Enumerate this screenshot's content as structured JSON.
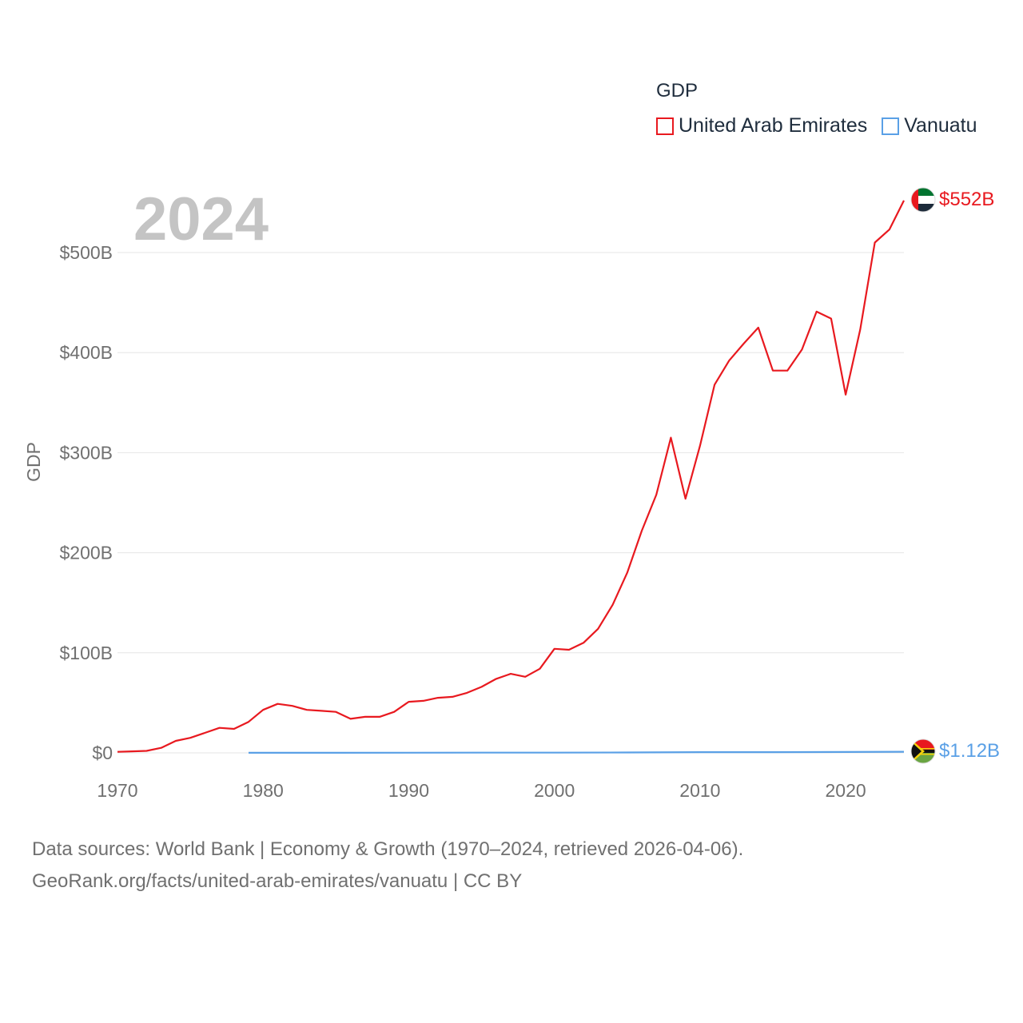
{
  "legend": {
    "title": "GDP",
    "items": [
      {
        "label": "United Arab Emirates",
        "color": "#e8191f"
      },
      {
        "label": "Vanuatu",
        "color": "#5aa0e6"
      }
    ]
  },
  "footer": {
    "line1": "Data sources: World Bank | Economy & Growth (1970–2024, retrieved 2026-04-06).",
    "line2": "GeoRank.org/facts/united-arab-emirates/vanuatu | CC BY"
  },
  "chart_data": {
    "type": "line",
    "title": "GDP",
    "year_label": "2024",
    "xlabel": "",
    "ylabel": "GDP",
    "xlim": [
      1970,
      2024
    ],
    "ylim": [
      0,
      552
    ],
    "x_ticks": [
      1970,
      1980,
      1990,
      2000,
      2010,
      2020
    ],
    "y_ticks": [
      0,
      100,
      200,
      300,
      400,
      500
    ],
    "y_tick_labels": [
      "$0",
      "$100B",
      "$200B",
      "$300B",
      "$400B",
      "$500B"
    ],
    "grid": true,
    "legend_position": "top-right",
    "series": [
      {
        "name": "United Arab Emirates",
        "color": "#e8191f",
        "end_label": "$552B",
        "flag": "uae-flag",
        "x": [
          1970,
          1971,
          1972,
          1973,
          1974,
          1975,
          1976,
          1977,
          1978,
          1979,
          1980,
          1981,
          1982,
          1983,
          1984,
          1985,
          1986,
          1987,
          1988,
          1989,
          1990,
          1991,
          1992,
          1993,
          1994,
          1995,
          1996,
          1997,
          1998,
          1999,
          2000,
          2001,
          2002,
          2003,
          2004,
          2005,
          2006,
          2007,
          2008,
          2009,
          2010,
          2011,
          2012,
          2013,
          2014,
          2015,
          2016,
          2017,
          2018,
          2019,
          2020,
          2021,
          2022,
          2023,
          2024
        ],
        "values": [
          1,
          1.5,
          2,
          5,
          12,
          15,
          20,
          25,
          24,
          31,
          43,
          49,
          47,
          43,
          42,
          41,
          34,
          36,
          36,
          41,
          51,
          52,
          55,
          56,
          60,
          66,
          74,
          79,
          76,
          84,
          104,
          103,
          110,
          124,
          148,
          180,
          222,
          258,
          315,
          254,
          307,
          368,
          392,
          409,
          425,
          382,
          382,
          403,
          441,
          434,
          358,
          423,
          510,
          523,
          552
        ]
      },
      {
        "name": "Vanuatu",
        "color": "#5aa0e6",
        "end_label": "$1.12B",
        "flag": "vanuatu-flag",
        "x": [
          1979,
          1985,
          1990,
          1995,
          2000,
          2005,
          2010,
          2015,
          2020,
          2024
        ],
        "values": [
          0.1,
          0.1,
          0.15,
          0.25,
          0.27,
          0.39,
          0.7,
          0.74,
          0.9,
          1.12
        ]
      }
    ]
  }
}
